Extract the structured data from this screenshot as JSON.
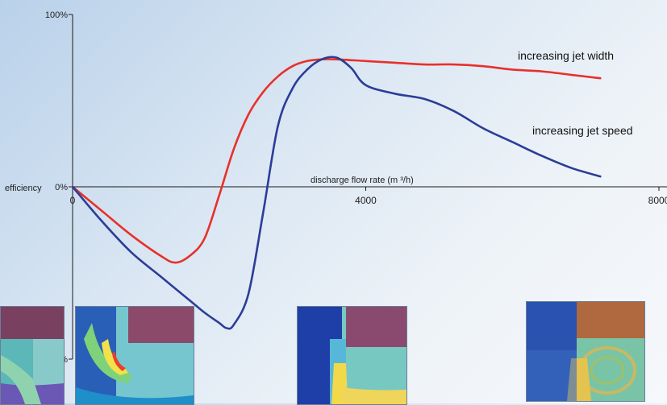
{
  "chart_data": {
    "type": "line",
    "xlabel": "discharge flow rate (m ³/h)",
    "ylabel": "efficiency",
    "xlim": [
      0,
      8000
    ],
    "ylim": [
      -100,
      100
    ],
    "x_ticks": [
      {
        "value": 0,
        "label": "0"
      },
      {
        "value": 4000,
        "label": "4000"
      },
      {
        "value": 8000,
        "label": "8000"
      }
    ],
    "y_ticks": [
      {
        "value": 100,
        "label": "100%"
      },
      {
        "value": 0,
        "label": "0%"
      },
      {
        "value": -100,
        "label": "%"
      }
    ],
    "grid": false,
    "series": [
      {
        "name": "increasing jet width",
        "color": "#e8302a",
        "x": [
          0,
          400,
          800,
          1200,
          1400,
          1600,
          1800,
          2000,
          2200,
          2400,
          2600,
          2800,
          3000,
          3200,
          3400,
          3600,
          4000,
          4400,
          4800,
          5200,
          5600,
          6000,
          6400,
          6800,
          7200
        ],
        "y": [
          0,
          -14,
          -28,
          -40,
          -44,
          -40,
          -30,
          -5,
          22,
          42,
          55,
          64,
          70,
          73,
          74,
          74,
          73,
          72,
          71,
          71,
          70,
          68,
          67,
          65,
          63
        ]
      },
      {
        "name": "increasing jet speed",
        "color": "#2b3d97",
        "x": [
          0,
          400,
          800,
          1200,
          1600,
          1800,
          2000,
          2100,
          2200,
          2400,
          2600,
          2800,
          3000,
          3200,
          3400,
          3600,
          3800,
          4000,
          4400,
          4800,
          5200,
          5600,
          6000,
          6400,
          6800,
          7200
        ],
        "y": [
          0,
          -20,
          -38,
          -52,
          -66,
          -73,
          -79,
          -82,
          -80,
          -62,
          -15,
          35,
          57,
          68,
          74,
          75,
          69,
          59,
          54,
          51,
          44,
          34,
          26,
          18,
          11,
          6
        ]
      }
    ]
  }
}
